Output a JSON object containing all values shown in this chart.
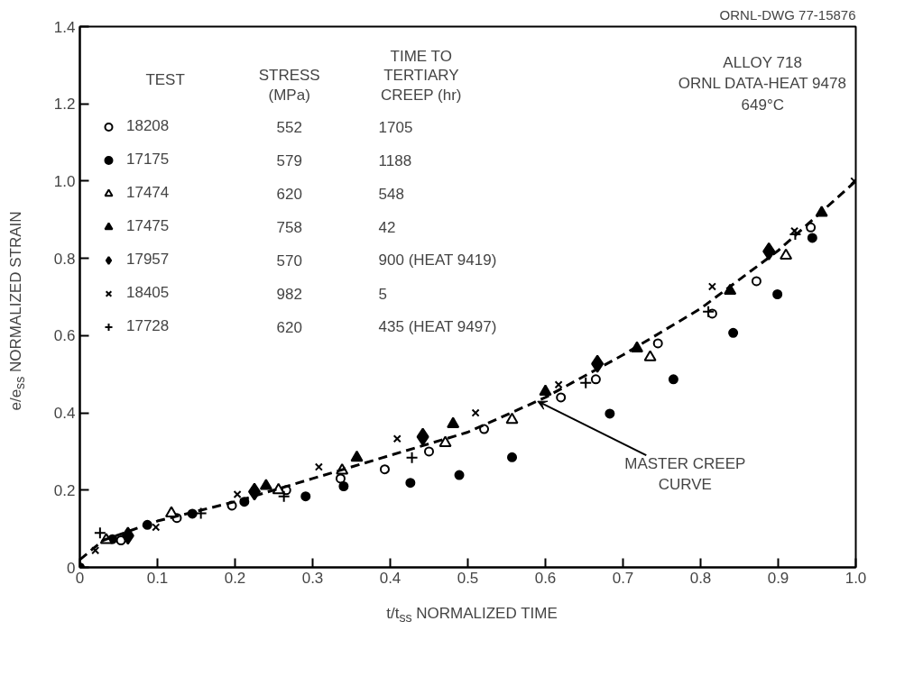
{
  "chart_data": {
    "type": "scatter",
    "xlabel": "t/t$_{ss}$ NORMALIZED TIME",
    "ylabel": "e/e$_{ss}$ NORMALIZED STRAIN",
    "legend_title": "TEST",
    "xlim": [
      0,
      1.0
    ],
    "ylim": [
      0,
      1.4
    ],
    "xticks": [
      {
        "value": 0,
        "label": "0"
      },
      0.1,
      0.2,
      0.3,
      0.4,
      0.5,
      0.6,
      0.7,
      0.8,
      0.9,
      {
        "value": 1.0,
        "label": "1.0"
      }
    ],
    "yticks": [
      {
        "value": 0,
        "label": "0"
      },
      0.2,
      0.4,
      0.6,
      0.8,
      {
        "value": 1.0,
        "label": "1.0"
      },
      1.2,
      1.4
    ],
    "grid": false,
    "legend": "top left",
    "series": [
      {
        "name": "18208",
        "color": "#000000",
        "marker": "circle",
        "x": [
          0.053,
          0.125,
          0.196,
          0.266,
          0.336,
          0.393,
          0.45,
          0.521,
          0.62,
          0.665,
          0.745,
          0.815,
          0.872,
          0.942
        ],
        "values": [
          0.07,
          0.128,
          0.16,
          0.2,
          0.23,
          0.254,
          0.3,
          0.358,
          0.44,
          0.487,
          0.58,
          0.657,
          0.741,
          0.88
        ]
      },
      {
        "name": "17175",
        "color": "#000000",
        "marker": "circle_filled",
        "x": [
          0,
          0.042,
          0.087,
          0.145,
          0.212,
          0.291,
          0.34,
          0.426,
          0.489,
          0.557,
          0.683,
          0.765,
          0.842,
          0.899,
          0.944
        ],
        "values": [
          0,
          0.073,
          0.11,
          0.139,
          0.17,
          0.184,
          0.21,
          0.219,
          0.239,
          0.285,
          0.398,
          0.487,
          0.607,
          0.707,
          0.853
        ]
      },
      {
        "name": "17474",
        "color": "#000000",
        "marker": "triangle",
        "x": [
          0.034,
          0.118,
          0.256,
          0.338,
          0.471,
          0.557,
          0.735,
          0.91
        ],
        "values": [
          0.071,
          0.14,
          0.2,
          0.251,
          0.322,
          0.382,
          0.544,
          0.807
        ]
      },
      {
        "name": "17475",
        "color": "#000000",
        "marker": "triangle_filled",
        "x": [
          0.24,
          0.357,
          0.481,
          0.6,
          0.718,
          0.838,
          0.956
        ],
        "values": [
          0.211,
          0.284,
          0.371,
          0.455,
          0.567,
          0.716,
          0.918
        ]
      },
      {
        "name": "17957",
        "color": "#000000",
        "marker": "diamond",
        "x": [
          0.062,
          0.225,
          0.442,
          0.667,
          0.888
        ],
        "values": [
          0.082,
          0.196,
          0.338,
          0.527,
          0.818
        ]
      },
      {
        "name": "18405",
        "color": "#000000",
        "marker": "x",
        "x": [
          0.02,
          0.098,
          0.203,
          0.308,
          0.409,
          0.51,
          0.617,
          0.815,
          0.921,
          0.998
        ],
        "values": [
          0.044,
          0.104,
          0.189,
          0.26,
          0.333,
          0.4,
          0.473,
          0.727,
          0.871,
          1.0
        ]
      },
      {
        "name": "17728",
        "color": "#000000",
        "marker": "cross",
        "x": [
          0.026,
          0.156,
          0.263,
          0.428,
          0.652,
          0.81,
          0.922
        ],
        "values": [
          0.089,
          0.14,
          0.184,
          0.284,
          0.478,
          0.662,
          0.862
        ]
      },
      {
        "type": "line",
        "color": "#000000",
        "line_style": "dashed",
        "x": [
          0,
          0.03,
          0.1,
          0.2,
          0.3,
          0.4,
          0.5,
          0.6,
          0.7,
          0.8,
          0.9,
          1.0
        ],
        "values": [
          0.02,
          0.07,
          0.12,
          0.17,
          0.23,
          0.29,
          0.35,
          0.44,
          0.55,
          0.67,
          0.82,
          1.0
        ]
      }
    ],
    "annotations": [
      "STRESS\n(MPa)",
      "TIME TO\nTERTIARY\nCREEP (hr)",
      "552",
      "1705",
      "579",
      "1188",
      "620",
      "548",
      "758",
      "42",
      "570",
      "900 (HEAT 9419)",
      "982",
      "5",
      "620",
      "435 (HEAT 9497)",
      "ALLOY 718\nORNL DATA-HEAT 9478\n649°C",
      "ORNL-DWG 77-15876",
      {
        "text": "MASTER CREEP\nCURVE",
        "x": 0.59,
        "y": 0.43
      }
    ]
  }
}
